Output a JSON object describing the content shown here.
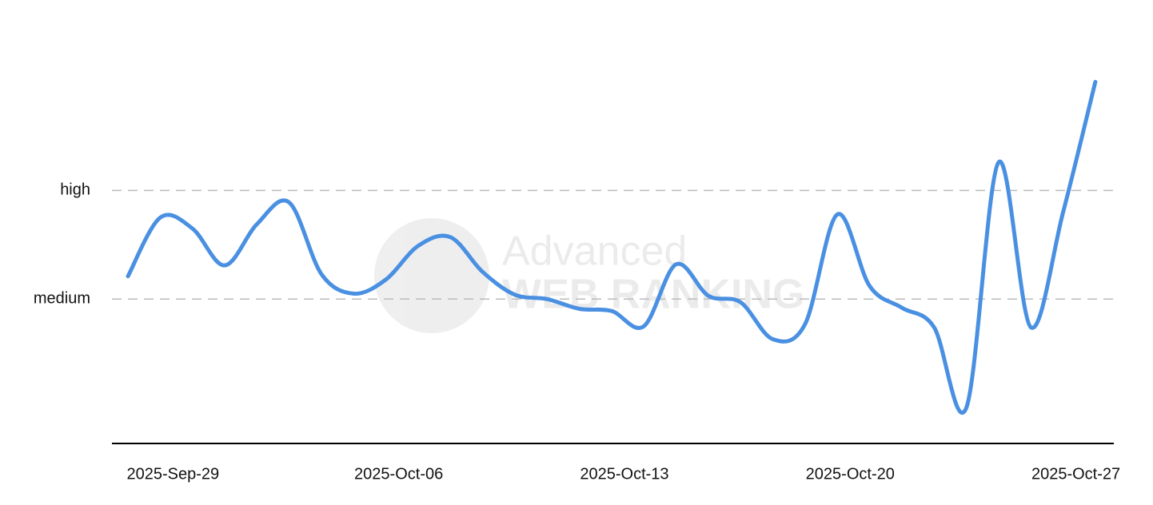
{
  "chart_data": {
    "type": "line",
    "categories": [
      null,
      "2025-Sep-29",
      null,
      null,
      null,
      null,
      null,
      null,
      "2025-Oct-06",
      null,
      null,
      null,
      null,
      null,
      null,
      "2025-Oct-13",
      null,
      null,
      null,
      null,
      null,
      null,
      "2025-Oct-20",
      null,
      null,
      null,
      null,
      null,
      null,
      "2025-Oct-27",
      null
    ],
    "series": [
      {
        "color": "#4a90e2",
        "values": [
          1.21,
          1.75,
          1.65,
          1.31,
          1.69,
          1.89,
          1.23,
          1.05,
          1.18,
          1.49,
          1.57,
          1.25,
          1.04,
          1.0,
          0.91,
          0.89,
          0.75,
          1.32,
          1.03,
          0.97,
          0.63,
          0.77,
          1.78,
          1.12,
          0.92,
          0.74,
          0.0,
          2.26,
          0.74,
          1.8,
          3.0
        ]
      }
    ],
    "ylim": [
      -0.33,
      3.46
    ],
    "yticks": [
      {
        "value": 1,
        "label": "medium"
      },
      {
        "value": 2,
        "label": "high"
      }
    ],
    "grid": true,
    "watermark": [
      "Advanced",
      "WEB RANKING"
    ]
  }
}
